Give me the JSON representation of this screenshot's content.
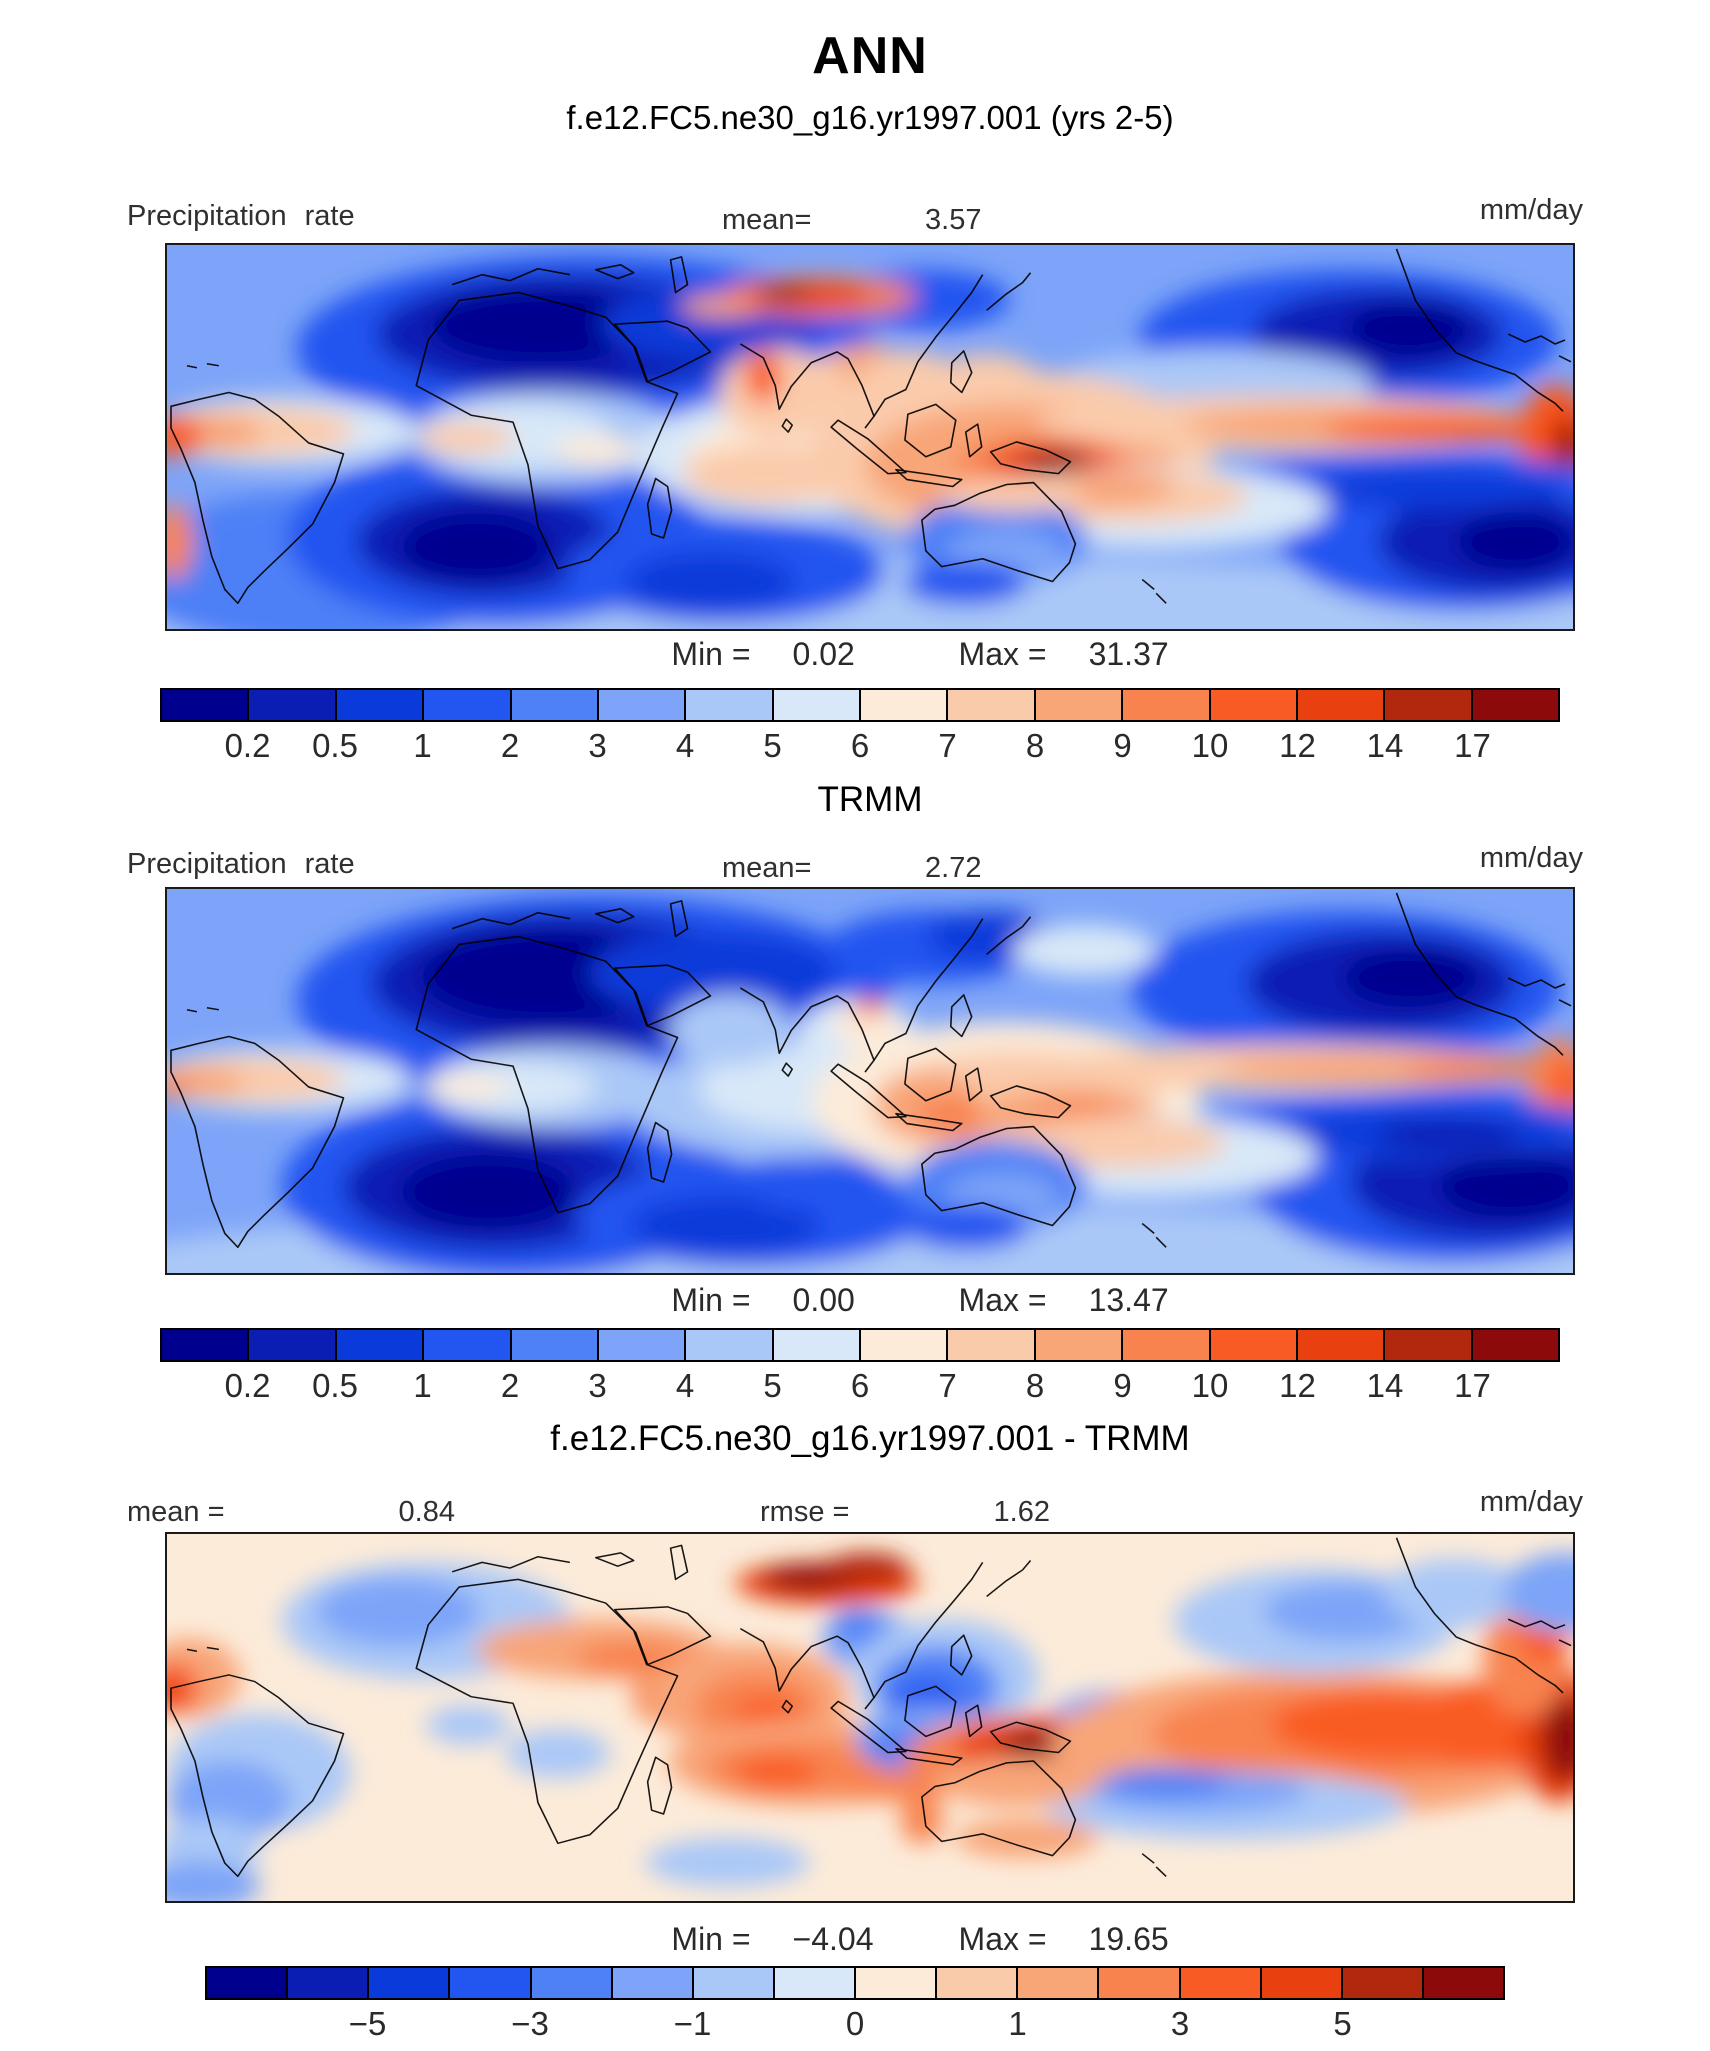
{
  "header": {
    "title": "ANN",
    "subtitle": "f.e12.FC5.ne30_g16.yr1997.001 (yrs 2-5)"
  },
  "palette": [
    "#00008F",
    "#0A1EB4",
    "#0A3AD9",
    "#2355F0",
    "#4E80F6",
    "#7DA4F8",
    "#AAC8F7",
    "#D8E8F8",
    "#FCEBD9",
    "#FACBAB",
    "#F8A578",
    "#F8834F",
    "#F95B24",
    "#E8400E",
    "#B2280E",
    "#8C0A0A"
  ],
  "panels": [
    {
      "id": "case",
      "field_label": "Precipitation rate",
      "mean_label": "mean=",
      "mean_value": "3.57",
      "units": "mm/day",
      "min_label": "Min =",
      "min_value": "0.02",
      "max_label": "Max =",
      "max_value": "31.37",
      "colorbar_labels": [
        "0.2",
        "0.5",
        "1",
        "2",
        "3",
        "4",
        "5",
        "6",
        "7",
        "8",
        "9",
        "10",
        "12",
        "14",
        "17"
      ]
    },
    {
      "id": "obs",
      "title": "TRMM",
      "field_label": "Precipitation rate",
      "mean_label": "mean=",
      "mean_value": "2.72",
      "units": "mm/day",
      "min_label": "Min =",
      "min_value": "0.00",
      "max_label": "Max =",
      "max_value": "13.47",
      "colorbar_labels": [
        "0.2",
        "0.5",
        "1",
        "2",
        "3",
        "4",
        "5",
        "6",
        "7",
        "8",
        "9",
        "10",
        "12",
        "14",
        "17"
      ]
    },
    {
      "id": "diff",
      "title": "f.e12.FC5.ne30_g16.yr1997.001 - TRMM",
      "mean_label": "mean =",
      "mean_value": "0.84",
      "rmse_label": "rmse =",
      "rmse_value": "1.62",
      "units": "mm/day",
      "min_label": "Min =",
      "min_value": "−4.04",
      "max_label": "Max =",
      "max_value": "19.65",
      "colorbar_labels": [
        "−5",
        "−3",
        "−1",
        "0",
        "1",
        "3",
        "5"
      ]
    }
  ],
  "chart_data": [
    {
      "type": "heatmap",
      "subtype": "filled-contour-world-map",
      "season": "ANN",
      "title": "f.e12.FC5.ne30_g16.yr1997.001 (yrs 2-5)",
      "variable": "Precipitation rate",
      "units": "mm/day",
      "stats": {
        "mean": 3.57,
        "min": 0.02,
        "max": 31.37
      },
      "contour_levels": [
        0.2,
        0.5,
        1,
        2,
        3,
        4,
        5,
        6,
        7,
        8,
        9,
        10,
        12,
        14,
        17
      ],
      "colors": [
        "#00008F",
        "#0A1EB4",
        "#0A3AD9",
        "#2355F0",
        "#4E80F6",
        "#7DA4F8",
        "#AAC8F7",
        "#D8E8F8",
        "#FCEBD9",
        "#FACBAB",
        "#F8A578",
        "#F8834F",
        "#F95B24",
        "#E8400E",
        "#B2280E",
        "#8C0A0A"
      ],
      "legend_position": "bottom-horizontal"
    },
    {
      "type": "heatmap",
      "subtype": "filled-contour-world-map",
      "season": "ANN",
      "title": "TRMM",
      "variable": "Precipitation rate",
      "units": "mm/day",
      "stats": {
        "mean": 2.72,
        "min": 0.0,
        "max": 13.47
      },
      "contour_levels": [
        0.2,
        0.5,
        1,
        2,
        3,
        4,
        5,
        6,
        7,
        8,
        9,
        10,
        12,
        14,
        17
      ],
      "colors": [
        "#00008F",
        "#0A1EB4",
        "#0A3AD9",
        "#2355F0",
        "#4E80F6",
        "#7DA4F8",
        "#AAC8F7",
        "#D8E8F8",
        "#FCEBD9",
        "#FACBAB",
        "#F8A578",
        "#F8834F",
        "#F95B24",
        "#E8400E",
        "#B2280E",
        "#8C0A0A"
      ],
      "legend_position": "bottom-horizontal"
    },
    {
      "type": "heatmap",
      "subtype": "filled-contour-world-map-difference",
      "season": "ANN",
      "title": "f.e12.FC5.ne30_g16.yr1997.001 - TRMM",
      "units": "mm/day",
      "stats": {
        "mean": 0.84,
        "rmse": 1.62,
        "min": -4.04,
        "max": 19.65
      },
      "labeled_levels": [
        -5,
        -3,
        -1,
        0,
        1,
        3,
        5
      ],
      "colors": [
        "#00008F",
        "#0A1EB4",
        "#0A3AD9",
        "#2355F0",
        "#4E80F6",
        "#7DA4F8",
        "#AAC8F7",
        "#D8E8F8",
        "#FCEBD9",
        "#FACBAB",
        "#F8A578",
        "#F8834F",
        "#F95B24",
        "#E8400E",
        "#B2280E",
        "#8C0A0A"
      ],
      "legend_position": "bottom-horizontal"
    }
  ]
}
